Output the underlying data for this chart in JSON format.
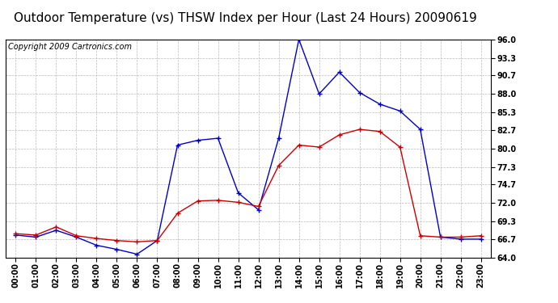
{
  "title": "Outdoor Temperature (vs) THSW Index per Hour (Last 24 Hours) 20090619",
  "copyright": "Copyright 2009 Cartronics.com",
  "hours": [
    "00:00",
    "01:00",
    "02:00",
    "03:00",
    "04:00",
    "05:00",
    "06:00",
    "07:00",
    "08:00",
    "09:00",
    "10:00",
    "11:00",
    "12:00",
    "13:00",
    "14:00",
    "15:00",
    "16:00",
    "17:00",
    "18:00",
    "19:00",
    "20:00",
    "21:00",
    "22:00",
    "23:00"
  ],
  "temp_red": [
    67.5,
    67.3,
    68.5,
    67.2,
    66.8,
    66.5,
    66.3,
    66.5,
    70.5,
    72.3,
    72.4,
    72.1,
    71.5,
    77.5,
    80.5,
    80.2,
    82.0,
    82.8,
    82.5,
    80.2,
    67.2,
    67.0,
    67.0,
    67.2
  ],
  "thsw_blue": [
    67.3,
    67.0,
    68.0,
    67.0,
    65.8,
    65.2,
    64.5,
    66.5,
    80.5,
    81.2,
    81.5,
    73.5,
    71.0,
    81.5,
    96.0,
    88.0,
    91.2,
    88.2,
    86.5,
    85.5,
    82.8,
    67.0,
    66.7,
    66.7
  ],
  "ylim": [
    64.0,
    96.0
  ],
  "yticks": [
    64.0,
    66.7,
    69.3,
    72.0,
    74.7,
    77.3,
    80.0,
    82.7,
    85.3,
    88.0,
    90.7,
    93.3,
    96.0
  ],
  "red_color": "#cc0000",
  "blue_color": "#0000cc",
  "grid_color": "#bbbbbb",
  "bg_color": "#ffffff",
  "title_fontsize": 11,
  "axis_label_fontsize": 7,
  "copyright_fontsize": 7
}
